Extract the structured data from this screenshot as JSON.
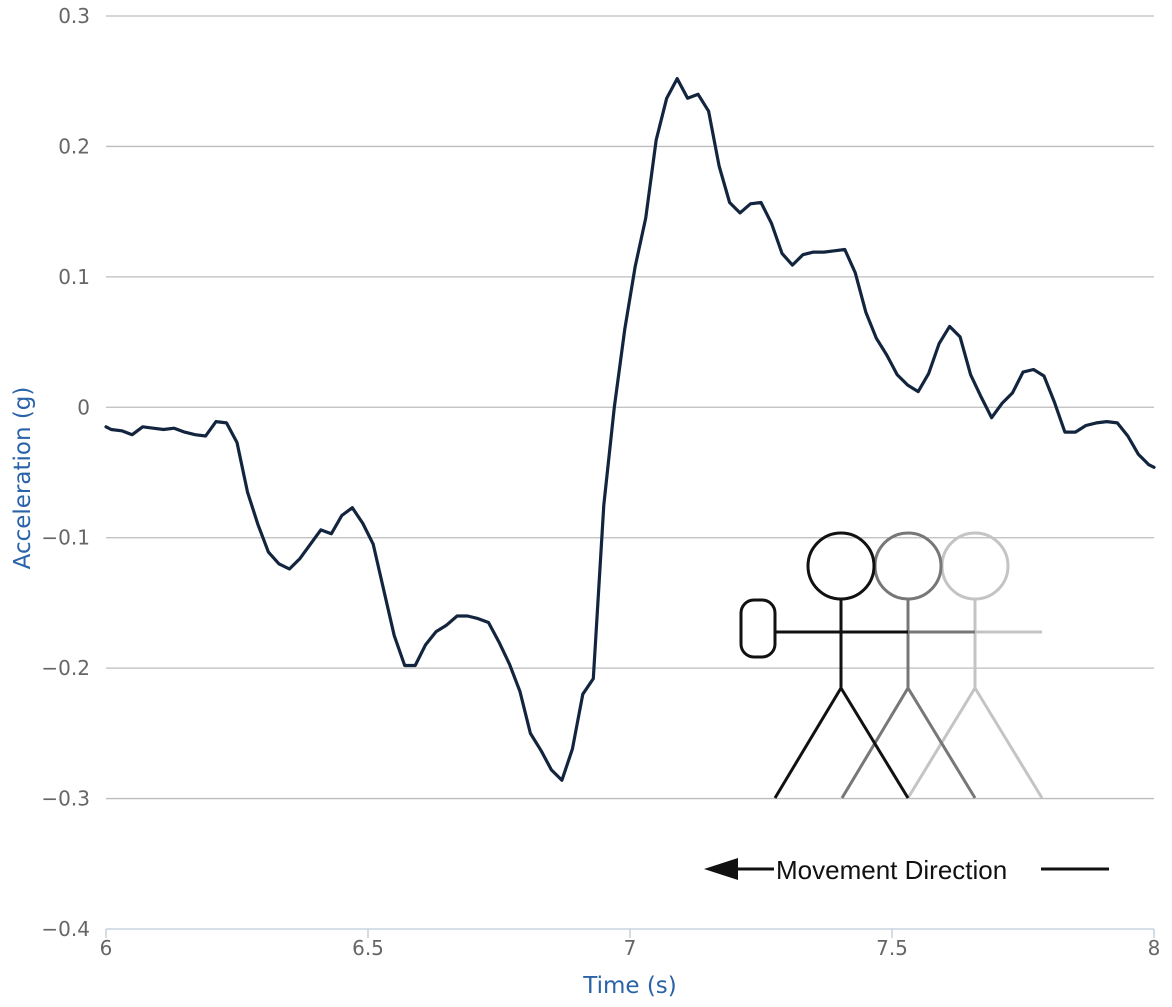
{
  "chart_data": {
    "type": "line",
    "title": "",
    "xlabel": "Time (s)",
    "ylabel": "Acceleration (g)",
    "xlim": [
      6,
      8
    ],
    "ylim": [
      -0.4,
      0.3
    ],
    "x_ticks": [
      {
        "value": 6,
        "label": "6"
      },
      {
        "value": 6.5,
        "label": "6.5"
      },
      {
        "value": 7,
        "label": "7"
      },
      {
        "value": 7.5,
        "label": "7.5"
      },
      {
        "value": 8,
        "label": "8"
      }
    ],
    "y_ticks": [
      {
        "value": 0.3,
        "label": "0.3"
      },
      {
        "value": 0.2,
        "label": "0.2"
      },
      {
        "value": 0.1,
        "label": "0.1"
      },
      {
        "value": 0,
        "label": "0"
      },
      {
        "value": -0.1,
        "label": "−0.1"
      },
      {
        "value": -0.2,
        "label": "−0.2"
      },
      {
        "value": -0.3,
        "label": "−0.3"
      },
      {
        "value": -0.4,
        "label": "−0.4"
      }
    ],
    "grid": "horizontal",
    "line_color": "#13253e",
    "axis_title_color": "#2a63a8",
    "series": [
      {
        "x": [
          6.0,
          6.01,
          6.03,
          6.05,
          6.07,
          6.09,
          6.11,
          6.13,
          6.15,
          6.17,
          6.19,
          6.21,
          6.23,
          6.25,
          6.27,
          6.29,
          6.31,
          6.33,
          6.35,
          6.37,
          6.39,
          6.41,
          6.43,
          6.45,
          6.47,
          6.49,
          6.51,
          6.53,
          6.55,
          6.57,
          6.59,
          6.61,
          6.63,
          6.65,
          6.67,
          6.69,
          6.71,
          6.73,
          6.75,
          6.77,
          6.79,
          6.81,
          6.83,
          6.85,
          6.87,
          6.89,
          6.91,
          6.93,
          6.95,
          6.97,
          6.99,
          7.01,
          7.03,
          7.05,
          7.07,
          7.09,
          7.11,
          7.13,
          7.15,
          7.17,
          7.19,
          7.21,
          7.23,
          7.25,
          7.27,
          7.29,
          7.31,
          7.33,
          7.35,
          7.37,
          7.39,
          7.41,
          7.43,
          7.45,
          7.47,
          7.49,
          7.51,
          7.53,
          7.55,
          7.57,
          7.59,
          7.61,
          7.63,
          7.65,
          7.67,
          7.69,
          7.71,
          7.73,
          7.75,
          7.77,
          7.79,
          7.81,
          7.83,
          7.85,
          7.87,
          7.89,
          7.91,
          7.93,
          7.95,
          7.97,
          7.99,
          8.0
        ],
        "y": [
          -0.015,
          -0.017,
          -0.018,
          -0.021,
          -0.015,
          -0.016,
          -0.017,
          -0.016,
          -0.019,
          -0.021,
          -0.022,
          -0.011,
          -0.012,
          -0.027,
          -0.065,
          -0.09,
          -0.111,
          -0.12,
          -0.124,
          -0.116,
          -0.105,
          -0.094,
          -0.097,
          -0.083,
          -0.077,
          -0.089,
          -0.105,
          -0.14,
          -0.175,
          -0.198,
          -0.198,
          -0.182,
          -0.172,
          -0.167,
          -0.16,
          -0.16,
          -0.162,
          -0.165,
          -0.18,
          -0.197,
          -0.218,
          -0.25,
          -0.263,
          -0.278,
          -0.286,
          -0.262,
          -0.22,
          -0.208,
          -0.075,
          0.0,
          0.06,
          0.108,
          0.145,
          0.205,
          0.237,
          0.252,
          0.237,
          0.24,
          0.227,
          0.185,
          0.157,
          0.149,
          0.156,
          0.157,
          0.141,
          0.118,
          0.109,
          0.117,
          0.119,
          0.119,
          0.12,
          0.121,
          0.103,
          0.073,
          0.053,
          0.04,
          0.025,
          0.017,
          0.012,
          0.026,
          0.049,
          0.062,
          0.054,
          0.025,
          0.008,
          -0.008,
          0.003,
          0.011,
          0.027,
          0.029,
          0.024,
          0.004,
          -0.019,
          -0.019,
          -0.014,
          -0.012,
          -0.011,
          -0.012,
          -0.022,
          -0.036,
          -0.044,
          -0.046
        ]
      }
    ],
    "annotation": {
      "movement_label": "Movement Direction",
      "arrow_direction": "left",
      "figure_colors": [
        "#111111",
        "#777777",
        "#c4c4c4"
      ]
    }
  }
}
